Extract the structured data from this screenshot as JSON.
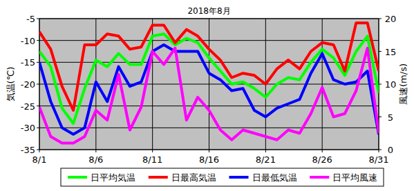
{
  "chart_data": {
    "type": "line",
    "title": "2018年8月",
    "y_label": "気温(℃)",
    "y2_label": "風速(m/s)",
    "categories": [
      "8/1",
      null,
      null,
      null,
      null,
      "8/6",
      null,
      null,
      null,
      null,
      "8/11",
      null,
      null,
      null,
      null,
      "8/16",
      null,
      null,
      null,
      null,
      "8/21",
      null,
      null,
      null,
      null,
      "8/26",
      null,
      null,
      null,
      null,
      "8/31"
    ],
    "ylim": [
      -35,
      -5
    ],
    "yticks": [
      -35,
      -30,
      -25,
      -20,
      -15,
      -10,
      -5
    ],
    "y2lim": [
      0,
      20
    ],
    "y2ticks": [
      0,
      5,
      10,
      15,
      20
    ],
    "grid": true,
    "legend": "bottom",
    "series": [
      {
        "name": "日平均気温",
        "color": "#00ff00",
        "values": [
          -12.5,
          -16,
          -25.5,
          -29,
          -21,
          -14.5,
          -16,
          -13,
          -15.5,
          -15.5,
          -9,
          -8.5,
          -11,
          -9.5,
          -10.5,
          -14,
          -17,
          -20,
          -19.5,
          -21,
          -23,
          -20,
          -18.5,
          -19,
          -15,
          -12,
          -14,
          -18,
          -12.5,
          -9,
          -22
        ]
      },
      {
        "name": "日最高気温",
        "color": "#ff0000",
        "values": [
          -8,
          -12,
          -20.5,
          -26,
          -11,
          -11,
          -8.5,
          -9,
          -12,
          -11.5,
          -6.5,
          -6.5,
          -10.5,
          -7.5,
          -9,
          -12,
          -14.5,
          -18.5,
          -17.5,
          -18,
          -20,
          -16.5,
          -14.5,
          -16.5,
          -12.5,
          -10.5,
          -11,
          -17,
          -6,
          -6,
          -17
        ]
      },
      {
        "name": "日最低気温",
        "color": "#0000ff",
        "values": [
          -15,
          -24,
          -30,
          -31.5,
          -30,
          -19.5,
          -24,
          -16,
          -20.5,
          -19.5,
          -12.5,
          -11,
          -12.5,
          -12.5,
          -12.5,
          -17.5,
          -19,
          -21.5,
          -21,
          -26,
          -27.5,
          -25.5,
          -24.5,
          -23.5,
          -17.5,
          -13,
          -19,
          -20,
          -19.5,
          -17,
          -31.5
        ]
      },
      {
        "name": "日平均風速",
        "color": "#ff00ff",
        "axis": "y2",
        "values": [
          6.5,
          2,
          1,
          1,
          2,
          6,
          4.5,
          11.5,
          3,
          6.5,
          15,
          13,
          15.5,
          4.5,
          8,
          6,
          3,
          1.5,
          3,
          2.5,
          2,
          1.5,
          3,
          2.5,
          5.5,
          9.5,
          5,
          5.5,
          9,
          15.5,
          2.5
        ]
      }
    ]
  }
}
